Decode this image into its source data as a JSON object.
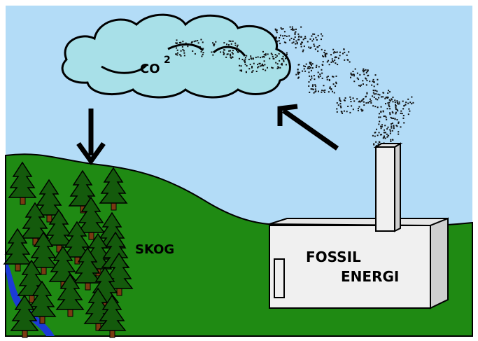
{
  "cloud": {
    "label": "CO",
    "superscript": "2"
  },
  "forest": {
    "label": "SKOG"
  },
  "factory": {
    "label_line1": "FOSSIL",
    "label_line2": "ENERGI"
  }
}
